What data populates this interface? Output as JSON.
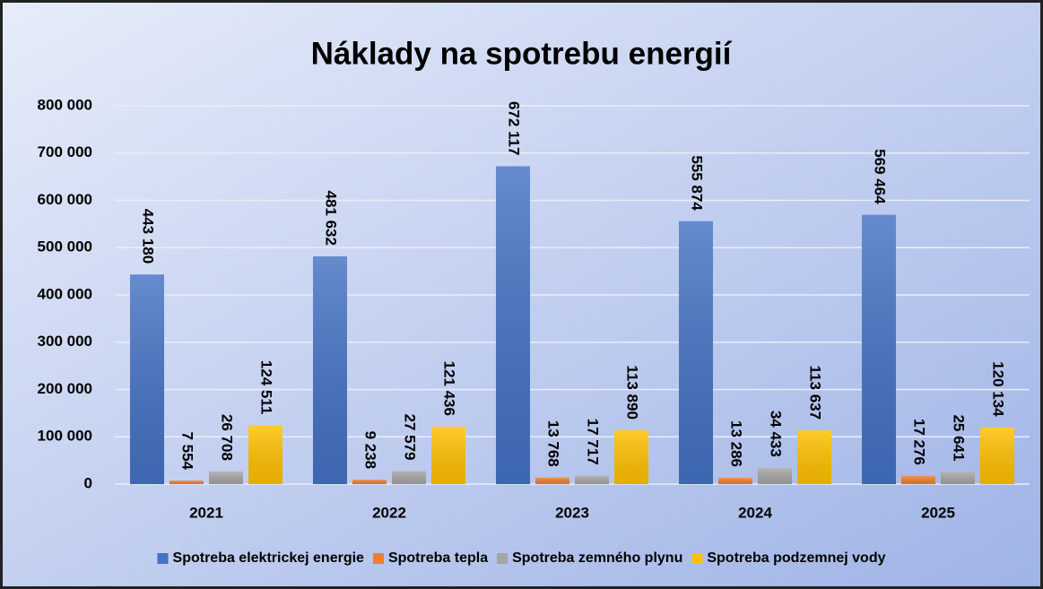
{
  "chart_data": {
    "type": "bar",
    "title": "Náklady na spotrebu energií",
    "categories": [
      "2021",
      "2022",
      "2023",
      "2024",
      "2025"
    ],
    "series": [
      {
        "name": "Spotreba elektrickej energie",
        "color": "#4472c4",
        "values": [
          443180,
          481632,
          672117,
          555874,
          569464
        ],
        "value_labels": [
          "443 180",
          "481 632",
          "672 117",
          "555 874",
          "569 464"
        ]
      },
      {
        "name": "Spotreba tepla",
        "color": "#ed7d31",
        "values": [
          7554,
          9238,
          13768,
          13286,
          17276
        ],
        "value_labels": [
          "7 554",
          "9 238",
          "13 768",
          "13 286",
          "17 276"
        ]
      },
      {
        "name": "Spotreba zemného plynu",
        "color": "#a5a5a5",
        "values": [
          26708,
          27579,
          17717,
          34433,
          25641
        ],
        "value_labels": [
          "26 708",
          "27 579",
          "17 717",
          "34 433",
          "25 641"
        ]
      },
      {
        "name": "Spotreba podzemnej vody",
        "color": "#ffc000",
        "values": [
          124511,
          121436,
          113890,
          113637,
          120134
        ],
        "value_labels": [
          "124 511",
          "121 436",
          "113 890",
          "113 637",
          "120 134"
        ]
      }
    ],
    "ylim": [
      0,
      800000
    ],
    "yticks": [
      0,
      {
        "value": 100000,
        "label": "100 000"
      },
      {
        "value": 200000,
        "label": "200 000"
      },
      {
        "value": 300000,
        "label": "300 000"
      },
      {
        "value": 400000,
        "label": "400 000"
      },
      {
        "value": 500000,
        "label": "500 000"
      },
      {
        "value": 600000,
        "label": "600 000"
      },
      {
        "value": 700000,
        "label": "700 000"
      },
      {
        "value": 800000,
        "label": "800 000"
      }
    ],
    "grid": true,
    "legend": "bottom"
  }
}
